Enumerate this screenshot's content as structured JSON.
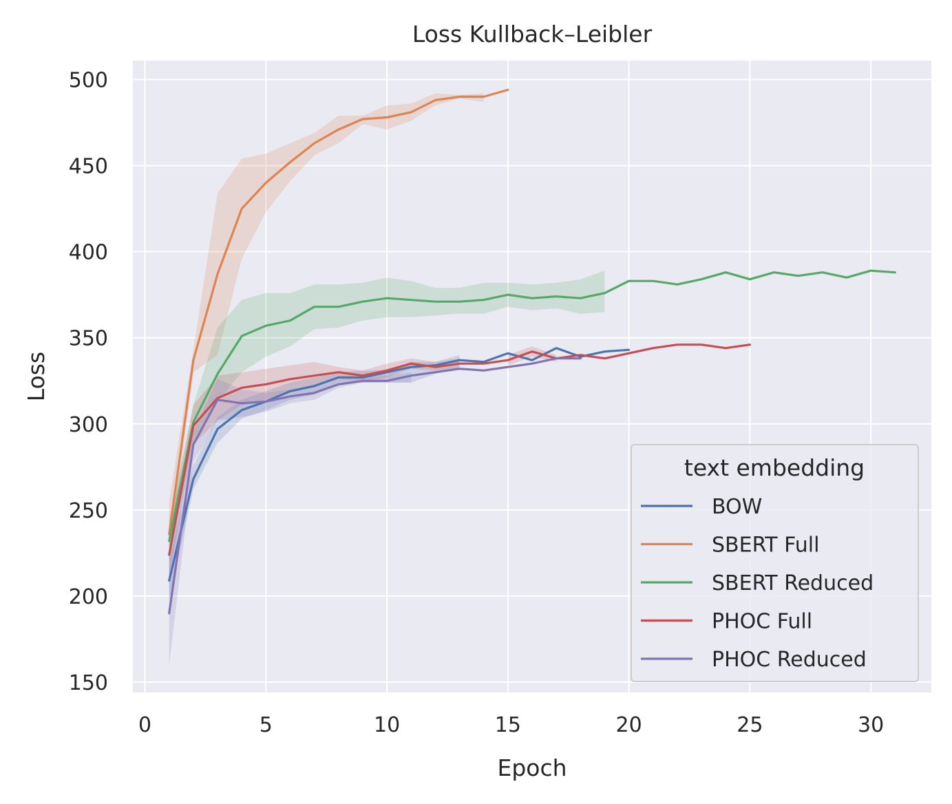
{
  "chart_data": {
    "type": "line",
    "title": "Loss Kullback–Leibler",
    "xlabel": "Epoch",
    "ylabel": "Loss",
    "xlim": [
      -0.5,
      32.5
    ],
    "ylim": [
      144,
      511
    ],
    "xticks": [
      0,
      5,
      10,
      15,
      20,
      25,
      30
    ],
    "yticks": [
      150,
      200,
      250,
      300,
      350,
      400,
      450,
      500
    ],
    "grid": true,
    "background": "#eaeaf2",
    "legend": {
      "title": "text embedding",
      "placement": "bottom-right"
    },
    "series": [
      {
        "name": "BOW",
        "color": "#4c72b0",
        "x": [
          1,
          2,
          3,
          4,
          5,
          6,
          7,
          8,
          9,
          10,
          11,
          12,
          13,
          14,
          15,
          16,
          17,
          18,
          19,
          20
        ],
        "values": [
          209,
          268,
          297,
          308,
          313,
          319,
          322,
          327,
          327,
          330,
          333,
          334,
          337,
          336,
          341,
          337,
          344,
          339,
          342,
          343
        ],
        "band_lower": [
          198,
          262,
          289,
          303,
          308,
          314,
          317,
          324,
          324,
          324,
          324,
          329,
          333,
          null,
          null,
          null,
          null,
          null,
          null,
          null
        ],
        "band_upper": [
          222,
          276,
          304,
          314,
          319,
          324,
          327,
          330,
          331,
          331,
          336,
          336,
          340,
          null,
          null,
          null,
          null,
          null,
          null,
          null
        ]
      },
      {
        "name": "SBERT Full",
        "color": "#dd8452",
        "x": [
          1,
          2,
          3,
          4,
          5,
          6,
          7,
          8,
          9,
          10,
          11,
          12,
          13,
          14,
          15
        ],
        "values": [
          236,
          337,
          387,
          425,
          440,
          452,
          463,
          471,
          477,
          478,
          481,
          488,
          490,
          490,
          494
        ],
        "band_lower": [
          222,
          330,
          340,
          396,
          423,
          441,
          456,
          463,
          474,
          471,
          476,
          485,
          489,
          487,
          null
        ],
        "band_upper": [
          255,
          343,
          434,
          454,
          457,
          463,
          469,
          479,
          479,
          485,
          486,
          492,
          491,
          492,
          null
        ]
      },
      {
        "name": "SBERT Reduced",
        "color": "#55a868",
        "x": [
          1,
          2,
          3,
          4,
          5,
          6,
          7,
          8,
          9,
          10,
          11,
          12,
          13,
          14,
          15,
          16,
          17,
          18,
          19,
          20,
          21,
          22,
          23,
          24,
          25,
          26,
          27,
          28,
          29,
          30,
          31
        ],
        "values": [
          232,
          301,
          329,
          351,
          357,
          360,
          368,
          368,
          371,
          373,
          372,
          371,
          371,
          372,
          375,
          373,
          374,
          373,
          376,
          383,
          383,
          381,
          384,
          388,
          384,
          388,
          386,
          388,
          385,
          389,
          388
        ],
        "band_lower": [
          220,
          290,
          313,
          330,
          339,
          345,
          355,
          356,
          360,
          362,
          362,
          363,
          364,
          364,
          368,
          366,
          367,
          364,
          365,
          null,
          null,
          null,
          null,
          null,
          null,
          null,
          null,
          null,
          null,
          null,
          null
        ],
        "band_upper": [
          244,
          311,
          356,
          372,
          376,
          376,
          381,
          381,
          382,
          385,
          383,
          379,
          379,
          382,
          382,
          381,
          382,
          384,
          389,
          null,
          null,
          null,
          null,
          null,
          null,
          null,
          null,
          null,
          null,
          null,
          null
        ]
      },
      {
        "name": "PHOC Full",
        "color": "#c44e52",
        "x": [
          1,
          2,
          3,
          4,
          5,
          6,
          7,
          8,
          9,
          10,
          11,
          12,
          13,
          14,
          15,
          16,
          17,
          18,
          19,
          20,
          21,
          22,
          23,
          24,
          25
        ],
        "values": [
          224,
          299,
          315,
          321,
          323,
          326,
          328,
          330,
          328,
          331,
          335,
          333,
          335,
          335,
          337,
          342,
          338,
          340,
          338,
          341,
          344,
          346,
          346,
          344,
          346
        ],
        "band_lower": [
          211,
          288,
          302,
          311,
          314,
          319,
          321,
          326,
          325,
          327,
          332,
          331,
          332,
          null,
          334,
          339,
          336,
          null,
          null,
          null,
          null,
          null,
          null,
          null,
          null
        ],
        "band_upper": [
          238,
          311,
          328,
          330,
          332,
          334,
          336,
          333,
          331,
          335,
          338,
          336,
          338,
          null,
          340,
          345,
          340,
          null,
          null,
          null,
          null,
          null,
          null,
          null,
          null
        ]
      },
      {
        "name": "PHOC Reduced",
        "color": "#8172b3",
        "x": [
          1,
          2,
          3,
          4,
          5,
          6,
          7,
          8,
          9,
          10,
          11,
          12,
          13,
          14,
          15,
          16,
          17,
          18
        ],
        "values": [
          190,
          288,
          314,
          312,
          313,
          316,
          318,
          323,
          325,
          325,
          328,
          330,
          332,
          331,
          333,
          335,
          338,
          338
        ],
        "band_lower": [
          160,
          278,
          302,
          304,
          307,
          312,
          314,
          321,
          324,
          324,
          324,
          null,
          null,
          null,
          null,
          null,
          null,
          null
        ],
        "band_upper": [
          220,
          296,
          326,
          320,
          318,
          320,
          321,
          326,
          327,
          328,
          330,
          null,
          null,
          null,
          null,
          null,
          null,
          null
        ]
      }
    ]
  }
}
